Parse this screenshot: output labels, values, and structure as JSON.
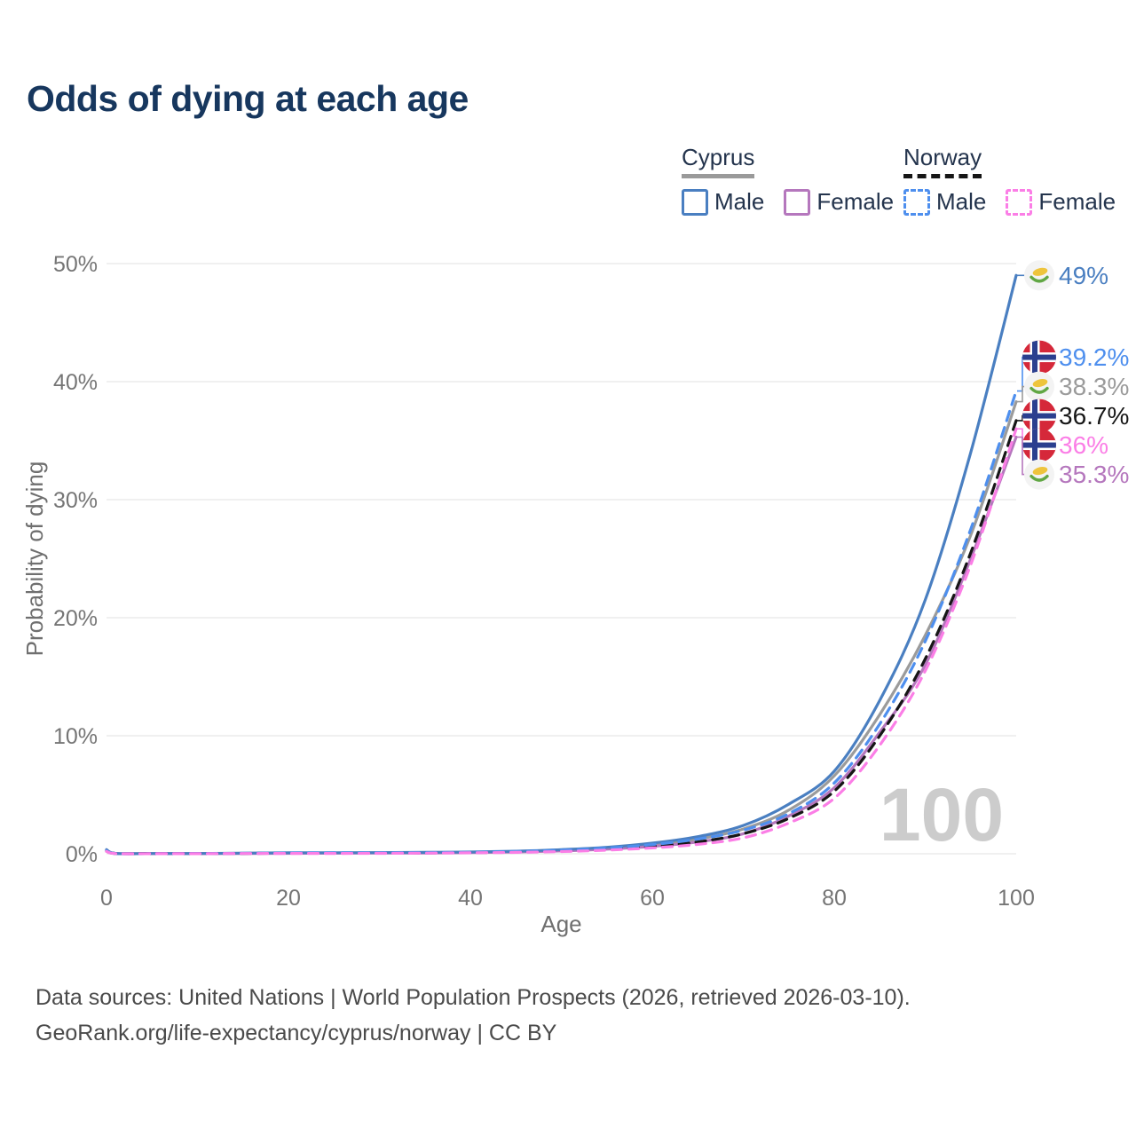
{
  "title": "Odds of dying at each age",
  "legend": {
    "groups": [
      {
        "country": "Cyprus",
        "style": "solid",
        "underline_color": "#9a9a9a",
        "items": [
          {
            "label": "Male",
            "color": "#4a7fc1"
          },
          {
            "label": "Female",
            "color": "#b577bd"
          }
        ]
      },
      {
        "country": "Norway",
        "style": "dashed",
        "underline_color": "#161616",
        "items": [
          {
            "label": "Male",
            "color": "#4e8fee"
          },
          {
            "label": "Female",
            "color": "#fb7ee6"
          }
        ]
      }
    ]
  },
  "chart_data": {
    "type": "line",
    "title": "Odds of dying at each age",
    "xlabel": "Age",
    "ylabel": "Probability of dying",
    "xlim": [
      0,
      100
    ],
    "ylim": [
      0,
      50
    ],
    "xticks": [
      0,
      20,
      40,
      60,
      80,
      100
    ],
    "yticks": [
      0,
      10,
      20,
      30,
      40,
      50
    ],
    "ytick_suffix": "%",
    "grid": "horizontal",
    "legend_position": "top-right",
    "watermark": "100",
    "x": [
      0,
      1,
      5,
      10,
      15,
      20,
      25,
      30,
      35,
      40,
      45,
      50,
      55,
      60,
      65,
      70,
      75,
      80,
      85,
      90,
      95,
      100
    ],
    "series": [
      {
        "name": "Cyprus Male",
        "country": "cyprus",
        "sex": "male",
        "color": "#4a7fc1",
        "style": "solid",
        "z": 3,
        "end_label": "49%",
        "values": [
          0.35,
          0.03,
          0.02,
          0.02,
          0.05,
          0.08,
          0.09,
          0.1,
          0.12,
          0.15,
          0.22,
          0.35,
          0.55,
          0.9,
          1.45,
          2.4,
          4.2,
          7.0,
          13.0,
          21.5,
          34.0,
          49.0
        ]
      },
      {
        "name": "Norway Male",
        "country": "norway",
        "sex": "male",
        "color": "#4e8fee",
        "style": "dashed",
        "z": 5,
        "end_label": "39.2%",
        "values": [
          0.25,
          0.02,
          0.01,
          0.02,
          0.04,
          0.07,
          0.08,
          0.09,
          0.1,
          0.13,
          0.19,
          0.3,
          0.48,
          0.78,
          1.25,
          2.0,
          3.4,
          6.0,
          11.0,
          18.0,
          27.5,
          39.2
        ]
      },
      {
        "name": "Cyprus Both sexes",
        "country": "cyprus",
        "sex": "both",
        "color": "#9b9b9b",
        "style": "solid",
        "z": 1,
        "end_label": "38.3%",
        "values": [
          0.3,
          0.025,
          0.015,
          0.02,
          0.04,
          0.06,
          0.07,
          0.08,
          0.09,
          0.12,
          0.18,
          0.29,
          0.46,
          0.75,
          1.25,
          2.1,
          3.7,
          6.6,
          11.8,
          18.5,
          27.0,
          38.3
        ]
      },
      {
        "name": "Norway Both sexes",
        "country": "norway",
        "sex": "both",
        "color": "#161616",
        "style": "dashed",
        "z": 4,
        "end_label": "36.7%",
        "values": [
          0.22,
          0.02,
          0.01,
          0.01,
          0.03,
          0.05,
          0.05,
          0.06,
          0.07,
          0.1,
          0.15,
          0.24,
          0.39,
          0.63,
          1.0,
          1.7,
          3.0,
          5.3,
          10.0,
          16.5,
          25.5,
          36.7
        ]
      },
      {
        "name": "Norway Female",
        "country": "norway",
        "sex": "female",
        "color": "#fb7ee6",
        "style": "dashed",
        "z": 6,
        "end_label": "36%",
        "values": [
          0.2,
          0.015,
          0.01,
          0.01,
          0.02,
          0.03,
          0.03,
          0.04,
          0.05,
          0.08,
          0.12,
          0.19,
          0.31,
          0.5,
          0.8,
          1.35,
          2.6,
          4.7,
          9.2,
          15.5,
          24.5,
          36.0
        ]
      },
      {
        "name": "Cyprus Female",
        "country": "cyprus",
        "sex": "female",
        "color": "#b577bd",
        "style": "solid",
        "z": 2,
        "end_label": "35.3%",
        "values": [
          0.28,
          0.02,
          0.01,
          0.01,
          0.03,
          0.04,
          0.05,
          0.06,
          0.07,
          0.1,
          0.15,
          0.24,
          0.39,
          0.63,
          1.0,
          1.7,
          3.2,
          5.6,
          10.3,
          16.0,
          25.0,
          35.3
        ]
      }
    ]
  },
  "footer": {
    "line1": "Data sources: United Nations | World Population Prospects (2026, retrieved 2026-03-10).",
    "line2": "GeoRank.org/life-expectancy/cyprus/norway | CC BY"
  }
}
